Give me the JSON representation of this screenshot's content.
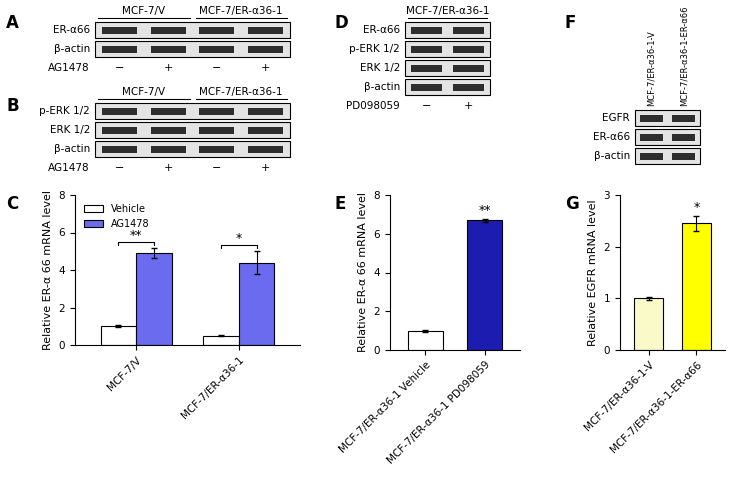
{
  "chart_data": [
    {
      "type": "bar",
      "categories": [
        "MCF-7/V",
        "MCF-7/ER-α36-1"
      ],
      "series": [
        {
          "name": "Vehicle",
          "color": "#ffffff",
          "values": [
            1.0,
            0.5
          ],
          "errors": [
            0.06,
            0.03
          ]
        },
        {
          "name": "AG1478",
          "color": "#6b6bf0",
          "values": [
            4.9,
            4.4
          ],
          "errors": [
            0.25,
            0.6
          ]
        }
      ],
      "y_label": "Relative ER-α 66 mRNA level",
      "ylim": [
        0,
        8
      ],
      "yticks": [
        0,
        2,
        4,
        6,
        8
      ],
      "legend": "upper left",
      "annotations": [
        {
          "text": "**",
          "category": 0
        },
        {
          "text": "*",
          "category": 1
        }
      ]
    },
    {
      "type": "bar",
      "categories": [
        "MCF-7/ER-α36-1 Vehicle",
        "MCF-7/ER-α36-1 PD098059"
      ],
      "values": [
        1.0,
        6.7
      ],
      "errors": [
        0.05,
        0.08
      ],
      "colors": [
        "#ffffff",
        "#1c1cb0"
      ],
      "y_label": "Relative ER-α 66 mRNA level",
      "ylim": [
        0,
        8
      ],
      "yticks": [
        0,
        2,
        4,
        6,
        8
      ],
      "annotations": [
        {
          "text": "**",
          "category": 1
        }
      ]
    },
    {
      "type": "bar",
      "categories": [
        "MCF-7/ER-α36-1-V",
        "MCF-7/ER-α36-1-ER-α66"
      ],
      "values": [
        1.0,
        2.45
      ],
      "errors": [
        0.03,
        0.15
      ],
      "colors": [
        "#fafac8",
        "#ffff00"
      ],
      "y_label": "Relative EGFR mRNA level",
      "ylim": [
        0,
        3
      ],
      "yticks": [
        0,
        1,
        2,
        3
      ],
      "annotations": [
        {
          "text": "*",
          "category": 1
        }
      ]
    }
  ],
  "panel_labels": [
    "A",
    "B",
    "C",
    "D",
    "E",
    "F",
    "G"
  ],
  "blots": [
    {
      "groups": [
        "MCF-7/V",
        "MCF-7/ER-α36-1"
      ],
      "rows": [
        "ER-α66",
        "β-actin"
      ],
      "treatment": {
        "label": "AG1478",
        "signs": [
          "−",
          "+",
          "−",
          "+"
        ]
      }
    },
    {
      "groups": [
        "MCF-7/V",
        "MCF-7/ER-α36-1"
      ],
      "rows": [
        "p-ERK 1/2",
        "ERK 1/2",
        "β-actin"
      ],
      "treatment": {
        "label": "AG1478",
        "signs": [
          "−",
          "+",
          "−",
          "+"
        ]
      }
    },
    {
      "groups": [
        "MCF-7/ER-α36-1"
      ],
      "rows": [
        "ER-α66",
        "p-ERK 1/2",
        "ERK 1/2",
        "β-actin"
      ],
      "treatment": {
        "label": "PD098059",
        "signs": [
          "−",
          "+"
        ]
      }
    },
    {
      "lane_labels": [
        "MCF-7/ER-α36-1-V",
        "MCF-7/ER-α36-1-ER-α66"
      ],
      "rows": [
        "EGFR",
        "ER-α66",
        "β-actin"
      ]
    }
  ]
}
